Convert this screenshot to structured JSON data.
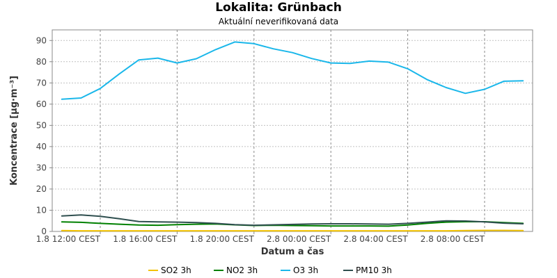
{
  "chart_data": {
    "type": "line",
    "title": "Lokalita: Grünbach",
    "subtitle": "Aktuální neverifikovaná data",
    "xlabel": "Datum a čas",
    "ylabel": "Koncentrace [µg·m⁻³]",
    "ylim": [
      0,
      95
    ],
    "yticks": [
      0,
      10,
      20,
      30,
      40,
      50,
      60,
      70,
      80,
      90
    ],
    "x_hours": [
      8,
      9,
      10,
      11,
      12,
      13,
      14,
      15,
      16,
      17,
      18,
      19,
      20,
      21,
      22,
      23,
      24,
      25,
      26,
      27,
      28,
      29,
      30,
      31,
      32
    ],
    "xlim_hours": [
      7.5,
      32.5
    ],
    "xticks": [
      {
        "hour": 10,
        "label": "1.8 12:00 CEST"
      },
      {
        "hour": 14,
        "label": "1.8 16:00 CEST"
      },
      {
        "hour": 18,
        "label": "1.8 20:00 CEST"
      },
      {
        "hour": 22,
        "label": "2.8 00:00 CEST"
      },
      {
        "hour": 26,
        "label": "2.8 04:00 CEST"
      },
      {
        "hour": 30,
        "label": "2.8 08:00 CEST"
      }
    ],
    "grid": true,
    "legend_position": "bottom",
    "series": [
      {
        "name": "SO2 3h",
        "color": "#f2c200",
        "values": [
          0.4,
          0.3,
          0.3,
          0.3,
          0.3,
          0.3,
          0.3,
          0.3,
          0.3,
          0.3,
          0.3,
          0.3,
          0.3,
          0.3,
          0.3,
          0.3,
          0.3,
          0.3,
          0.3,
          0.3,
          0.3,
          0.4,
          0.5,
          0.5,
          0.4
        ]
      },
      {
        "name": "NO2 3h",
        "color": "#008000",
        "values": [
          4.5,
          4.3,
          3.8,
          3.4,
          3.0,
          2.9,
          3.2,
          3.4,
          3.5,
          3.1,
          2.8,
          2.9,
          2.8,
          2.7,
          2.6,
          2.6,
          2.6,
          2.5,
          3.0,
          3.8,
          4.4,
          4.6,
          4.6,
          4.2,
          3.8
        ]
      },
      {
        "name": "O3 3h",
        "color": "#1ab7ea",
        "values": [
          62.3,
          62.9,
          67.4,
          74.3,
          80.8,
          81.7,
          79.4,
          81.4,
          85.7,
          89.3,
          88.5,
          86.1,
          84.3,
          81.5,
          79.4,
          79.2,
          80.3,
          79.8,
          76.7,
          71.6,
          67.8,
          65.1,
          67.0,
          70.8,
          71.0
        ]
      },
      {
        "name": "PM10 3h",
        "color": "#2f4f4f",
        "values": [
          7.3,
          7.8,
          7.1,
          6.0,
          4.7,
          4.5,
          4.4,
          4.2,
          3.8,
          3.2,
          2.9,
          3.1,
          3.3,
          3.5,
          3.6,
          3.6,
          3.5,
          3.4,
          3.8,
          4.4,
          5.0,
          4.9,
          4.5,
          3.9,
          3.6
        ]
      }
    ]
  }
}
